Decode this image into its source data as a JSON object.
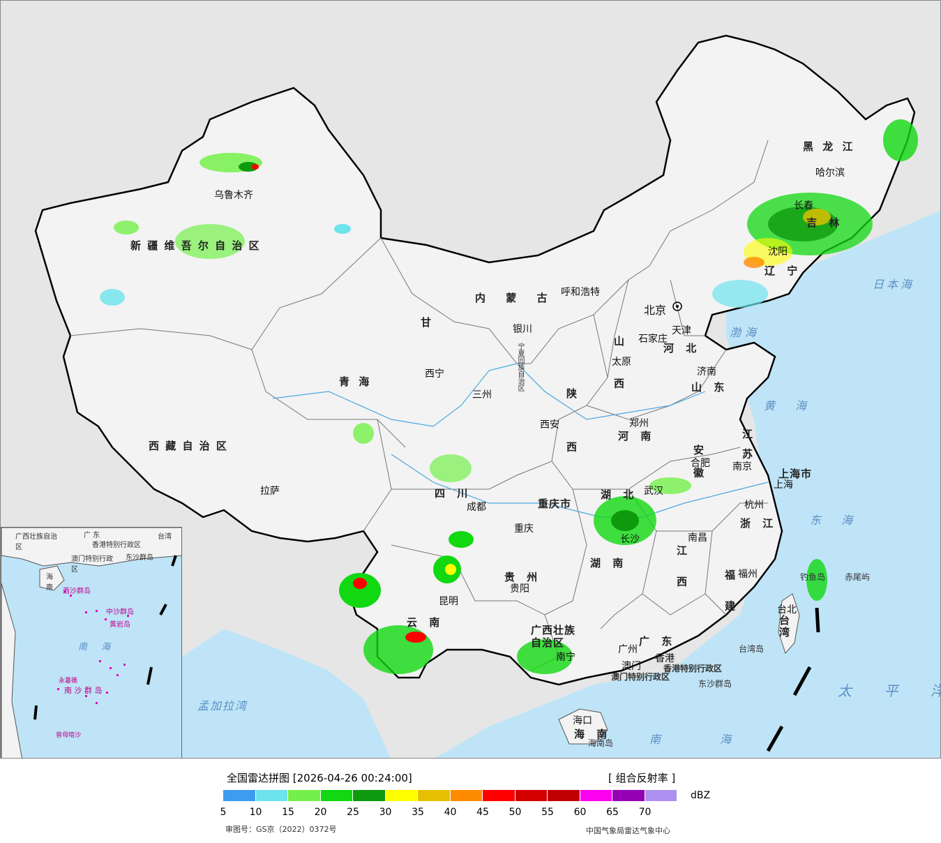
{
  "map": {
    "provinces": [
      {
        "id": "xinjiang",
        "label": "新 疆 维 吾 尔 自 治 区"
      },
      {
        "id": "xizang",
        "label": "西 藏 自 治 区"
      },
      {
        "id": "qinghai",
        "label": "青    海"
      },
      {
        "id": "gansu",
        "label": "甘"
      },
      {
        "id": "neimenggu",
        "label": "内  蒙  古"
      },
      {
        "id": "heilongjiang",
        "label": "黑 龙 江"
      },
      {
        "id": "jilin",
        "label": "吉 林"
      },
      {
        "id": "liaoning",
        "label": "辽 宁"
      },
      {
        "id": "hebei",
        "label": "河 北"
      },
      {
        "id": "shanxi",
        "label": "山 西"
      },
      {
        "id": "shaanxi",
        "label": "陕 西"
      },
      {
        "id": "shandong",
        "label": "山 东"
      },
      {
        "id": "henan",
        "label": "河 南"
      },
      {
        "id": "jiangsu",
        "label": "江 苏"
      },
      {
        "id": "anhui",
        "label": "安 徽"
      },
      {
        "id": "hubei",
        "label": "湖 北"
      },
      {
        "id": "sichuan",
        "label": "四 川"
      },
      {
        "id": "chongqing",
        "label": "重庆市"
      },
      {
        "id": "hunan",
        "label": "湖 南"
      },
      {
        "id": "jiangxi",
        "label": "江 西"
      },
      {
        "id": "zhejiang",
        "label": "浙 江"
      },
      {
        "id": "fujian",
        "label": "福 建"
      },
      {
        "id": "guizhou",
        "label": "贵 州"
      },
      {
        "id": "yunnan",
        "label": "云 南"
      },
      {
        "id": "guangxi",
        "label": "广西壮族 自治区"
      },
      {
        "id": "guangdong",
        "label": "广 东"
      },
      {
        "id": "hainan",
        "label": "海 南"
      },
      {
        "id": "taiwan",
        "label": "台湾"
      },
      {
        "id": "shanghai",
        "label": "上海市"
      },
      {
        "id": "ningxia",
        "label": "宁夏回族自治区"
      },
      {
        "id": "hk",
        "label": "香港特别行政区"
      },
      {
        "id": "macau",
        "label": "澳门特别行政区"
      }
    ],
    "cities": [
      {
        "id": "urumqi",
        "name": "乌鲁木齐"
      },
      {
        "id": "lhasa",
        "name": "拉萨"
      },
      {
        "id": "xining",
        "name": "西宁"
      },
      {
        "id": "lanzhou",
        "name": "三州"
      },
      {
        "id": "yinchuan",
        "name": "银川"
      },
      {
        "id": "hohhot",
        "name": "呼和浩特"
      },
      {
        "id": "beijing",
        "name": "北京"
      },
      {
        "id": "tianjin",
        "name": "天津"
      },
      {
        "id": "shijiazhuang",
        "name": "石家庄"
      },
      {
        "id": "taiyuan",
        "name": "太原"
      },
      {
        "id": "jinan",
        "name": "济南"
      },
      {
        "id": "xian",
        "name": "西安"
      },
      {
        "id": "zhengzhou",
        "name": "郑州"
      },
      {
        "id": "hefei",
        "name": "合肥"
      },
      {
        "id": "nanjing",
        "name": "南京"
      },
      {
        "id": "shanghai",
        "name": "上海"
      },
      {
        "id": "hangzhou",
        "name": "杭州"
      },
      {
        "id": "wuhan",
        "name": "武汉"
      },
      {
        "id": "chengdu",
        "name": "成都"
      },
      {
        "id": "chongqing",
        "name": "重庆"
      },
      {
        "id": "changsha",
        "name": "长沙"
      },
      {
        "id": "nanchang",
        "name": "南昌"
      },
      {
        "id": "fuzhou",
        "name": "福州"
      },
      {
        "id": "guiyang",
        "name": "贵阳"
      },
      {
        "id": "kunming",
        "name": "昆明"
      },
      {
        "id": "nanning",
        "name": "南宁"
      },
      {
        "id": "guangzhou",
        "name": "广州"
      },
      {
        "id": "hongkong",
        "name": "香港"
      },
      {
        "id": "macao",
        "name": "澳门"
      },
      {
        "id": "haikou",
        "name": "海口"
      },
      {
        "id": "taipei",
        "name": "台北"
      },
      {
        "id": "harbin",
        "name": "哈尔滨"
      },
      {
        "id": "changchun",
        "name": "长春"
      },
      {
        "id": "shenyang",
        "name": "沈阳"
      }
    ],
    "seas": [
      {
        "id": "bohai",
        "name": "渤海"
      },
      {
        "id": "huanghai",
        "name": "黄 海"
      },
      {
        "id": "donghai",
        "name": "东 海"
      },
      {
        "id": "nanhai",
        "name": "南 海"
      },
      {
        "id": "japan-sea",
        "name": "日本海"
      },
      {
        "id": "pacific",
        "name": "太 平 洋"
      },
      {
        "id": "bengal",
        "name": "孟加拉湾"
      }
    ],
    "islands": [
      {
        "id": "diaoyu",
        "name": "钓鱼岛"
      },
      {
        "id": "chiwei",
        "name": "赤尾屿"
      },
      {
        "id": "taiwan-island",
        "name": "台湾岛"
      },
      {
        "id": "dongsha",
        "name": "东沙群岛"
      },
      {
        "id": "hainan-island",
        "name": "海南岛"
      }
    ],
    "inset": {
      "labels": [
        {
          "id": "inset-guangdong",
          "name": "广 东"
        },
        {
          "id": "inset-guangxi",
          "name": "广西壮族自治区"
        },
        {
          "id": "inset-taiwan",
          "name": "台湾"
        },
        {
          "id": "inset-hk",
          "name": "香港特别行政区"
        },
        {
          "id": "inset-macau",
          "name": "澳门特别行政区"
        },
        {
          "id": "inset-dongsha",
          "name": "东沙群岛"
        },
        {
          "id": "inset-hainan",
          "name": "海 南"
        },
        {
          "id": "inset-xisha",
          "name": "西沙群岛"
        },
        {
          "id": "inset-zhongsha",
          "name": "中沙群岛"
        },
        {
          "id": "inset-huangyan",
          "name": "黄岩岛"
        },
        {
          "id": "inset-nanhai",
          "name": "南 海"
        },
        {
          "id": "inset-nansha",
          "name": "南 沙 群 岛"
        },
        {
          "id": "inset-yongshu",
          "name": "永暑礁"
        },
        {
          "id": "inset-zengmu",
          "name": "曾母暗沙"
        }
      ]
    }
  },
  "legend": {
    "title": "全国雷达拼图 [2026-04-26 00:24:00]",
    "product": "[ 组合反射率 ]",
    "unit": "dBZ",
    "review_no": "审图号：GS京（2022）0372号",
    "source": "中国气象局雷达气象中心",
    "colors": [
      "#3d9cf0",
      "#6de3ec",
      "#74f04a",
      "#11d811",
      "#0e9a0e",
      "#fefe00",
      "#e6c000",
      "#ff8c00",
      "#fe0000",
      "#d40000",
      "#c00000",
      "#fe00f0",
      "#9600b4",
      "#ae90f0"
    ],
    "ticks": [
      "5",
      "10",
      "15",
      "20",
      "25",
      "30",
      "35",
      "40",
      "45",
      "50",
      "55",
      "60",
      "65",
      "70"
    ]
  }
}
